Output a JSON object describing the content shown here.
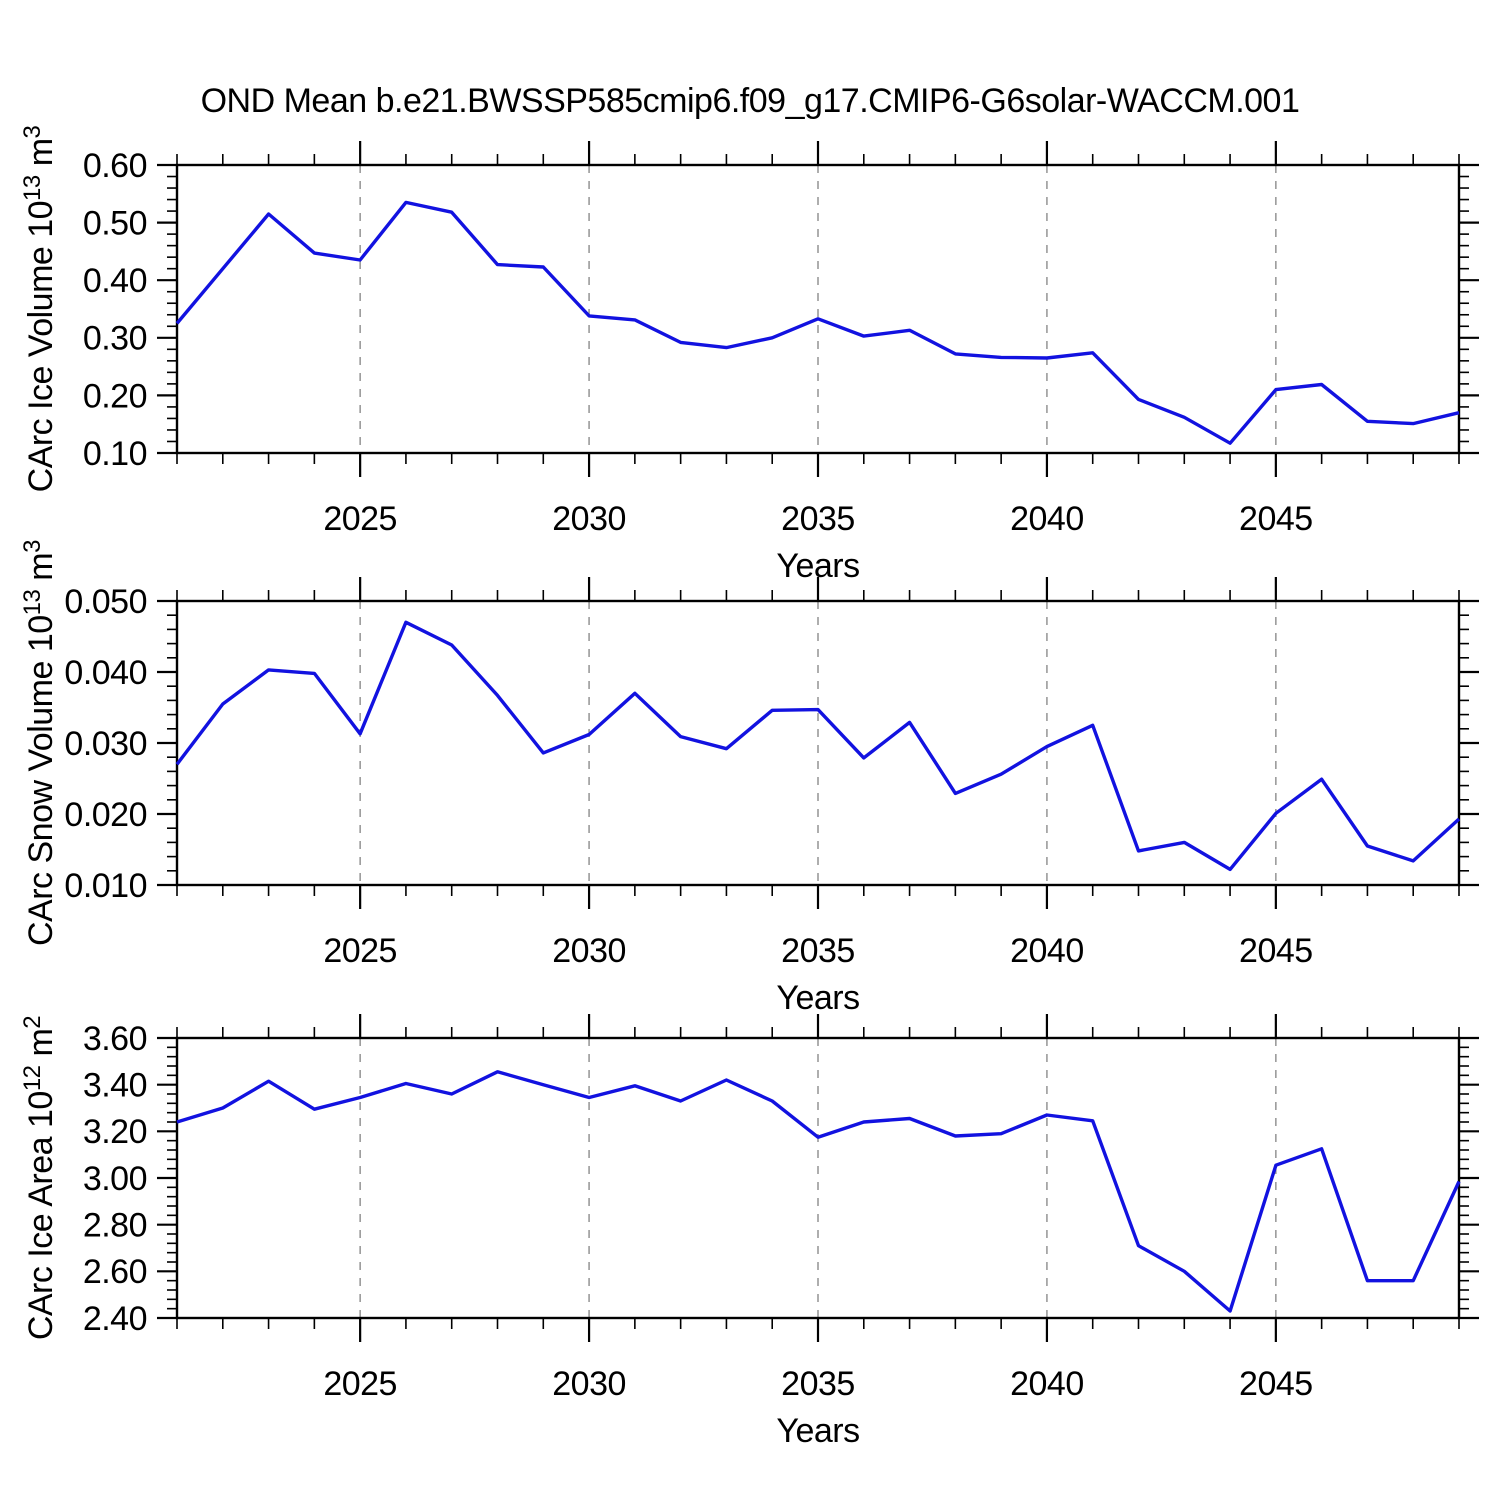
{
  "title": "OND Mean b.e21.BWSSP585cmip6.f09_g17.CMIP6-G6solar-WACCM.001",
  "style": {
    "line_color": "#1212e0",
    "grid_color": "#8c8c8c",
    "axis_color": "#000000",
    "background": "#ffffff"
  },
  "chart_data": [
    {
      "type": "line",
      "id": "carc-ice-volume",
      "ylabel": "CArc Ice Volume 10^13 m^3",
      "ylabel_parts": [
        {
          "text": "CArc Ice Volume 10"
        },
        {
          "text": "13",
          "super": true
        },
        {
          "text": " m"
        },
        {
          "text": "3",
          "super": true
        }
      ],
      "xlabel": "Years",
      "x": [
        2021,
        2022,
        2023,
        2024,
        2025,
        2026,
        2027,
        2028,
        2029,
        2030,
        2031,
        2032,
        2033,
        2034,
        2035,
        2036,
        2037,
        2038,
        2039,
        2040,
        2041,
        2042,
        2043,
        2044,
        2045,
        2046,
        2047,
        2048,
        2049
      ],
      "values": [
        0.325,
        0.42,
        0.515,
        0.447,
        0.435,
        0.535,
        0.518,
        0.427,
        0.423,
        0.338,
        0.331,
        0.292,
        0.283,
        0.3,
        0.333,
        0.303,
        0.313,
        0.272,
        0.266,
        0.265,
        0.274,
        0.193,
        0.162,
        0.117,
        0.21,
        0.219,
        0.155,
        0.151,
        0.17
      ],
      "xlim": [
        2021,
        2049
      ],
      "ylim": [
        0.1,
        0.6
      ],
      "ytick_step": 0.1,
      "yminor_step": 0.02,
      "y_decimals": 2,
      "x_major_ticks": [
        2025,
        2030,
        2035,
        2040,
        2045
      ],
      "x_minor_step": 1,
      "grid": "vertical-dashed-at-x-majors",
      "legend": "none"
    },
    {
      "type": "line",
      "id": "carc-snow-volume",
      "ylabel": "CArc Snow Volume 10^13 m^3",
      "ylabel_parts": [
        {
          "text": "CArc Snow Volume 10"
        },
        {
          "text": "13",
          "super": true
        },
        {
          "text": " m"
        },
        {
          "text": "3",
          "super": true
        }
      ],
      "xlabel": "Years",
      "x": [
        2021,
        2022,
        2023,
        2024,
        2025,
        2026,
        2027,
        2028,
        2029,
        2030,
        2031,
        2032,
        2033,
        2034,
        2035,
        2036,
        2037,
        2038,
        2039,
        2040,
        2041,
        2042,
        2043,
        2044,
        2045,
        2046,
        2047,
        2048,
        2049
      ],
      "values": [
        0.027,
        0.0355,
        0.0403,
        0.0398,
        0.0313,
        0.047,
        0.0438,
        0.0367,
        0.0286,
        0.0312,
        0.037,
        0.0309,
        0.0292,
        0.0346,
        0.0347,
        0.0279,
        0.0329,
        0.0229,
        0.0256,
        0.0295,
        0.0325,
        0.0148,
        0.016,
        0.0122,
        0.0201,
        0.0249,
        0.0155,
        0.0134,
        0.0193
      ],
      "xlim": [
        2021,
        2049
      ],
      "ylim": [
        0.01,
        0.05
      ],
      "ytick_step": 0.01,
      "yminor_step": 0.002,
      "y_decimals": 3,
      "x_major_ticks": [
        2025,
        2030,
        2035,
        2040,
        2045
      ],
      "x_minor_step": 1,
      "grid": "vertical-dashed-at-x-majors",
      "legend": "none"
    },
    {
      "type": "line",
      "id": "carc-ice-area",
      "ylabel": "CArc Ice Area 10^12 m^2",
      "ylabel_parts": [
        {
          "text": "CArc Ice Area 10"
        },
        {
          "text": "12",
          "super": true
        },
        {
          "text": " m"
        },
        {
          "text": "2",
          "super": true
        }
      ],
      "xlabel": "Years",
      "x": [
        2021,
        2022,
        2023,
        2024,
        2025,
        2026,
        2027,
        2028,
        2029,
        2030,
        2031,
        2032,
        2033,
        2034,
        2035,
        2036,
        2037,
        2038,
        2039,
        2040,
        2041,
        2042,
        2043,
        2044,
        2045,
        2046,
        2047,
        2048,
        2049
      ],
      "values": [
        3.24,
        3.3,
        3.415,
        3.295,
        3.345,
        3.405,
        3.36,
        3.455,
        3.4,
        3.345,
        3.395,
        3.33,
        3.42,
        3.33,
        3.175,
        3.24,
        3.255,
        3.18,
        3.19,
        3.27,
        3.245,
        2.71,
        2.6,
        2.43,
        3.055,
        3.125,
        2.56,
        2.56,
        2.985
      ],
      "xlim": [
        2021,
        2049
      ],
      "ylim": [
        2.4,
        3.6
      ],
      "ytick_step": 0.2,
      "yminor_step": 0.04,
      "y_decimals": 2,
      "x_major_ticks": [
        2025,
        2030,
        2035,
        2040,
        2045
      ],
      "x_minor_step": 1,
      "grid": "vertical-dashed-at-x-majors",
      "legend": "none"
    }
  ]
}
